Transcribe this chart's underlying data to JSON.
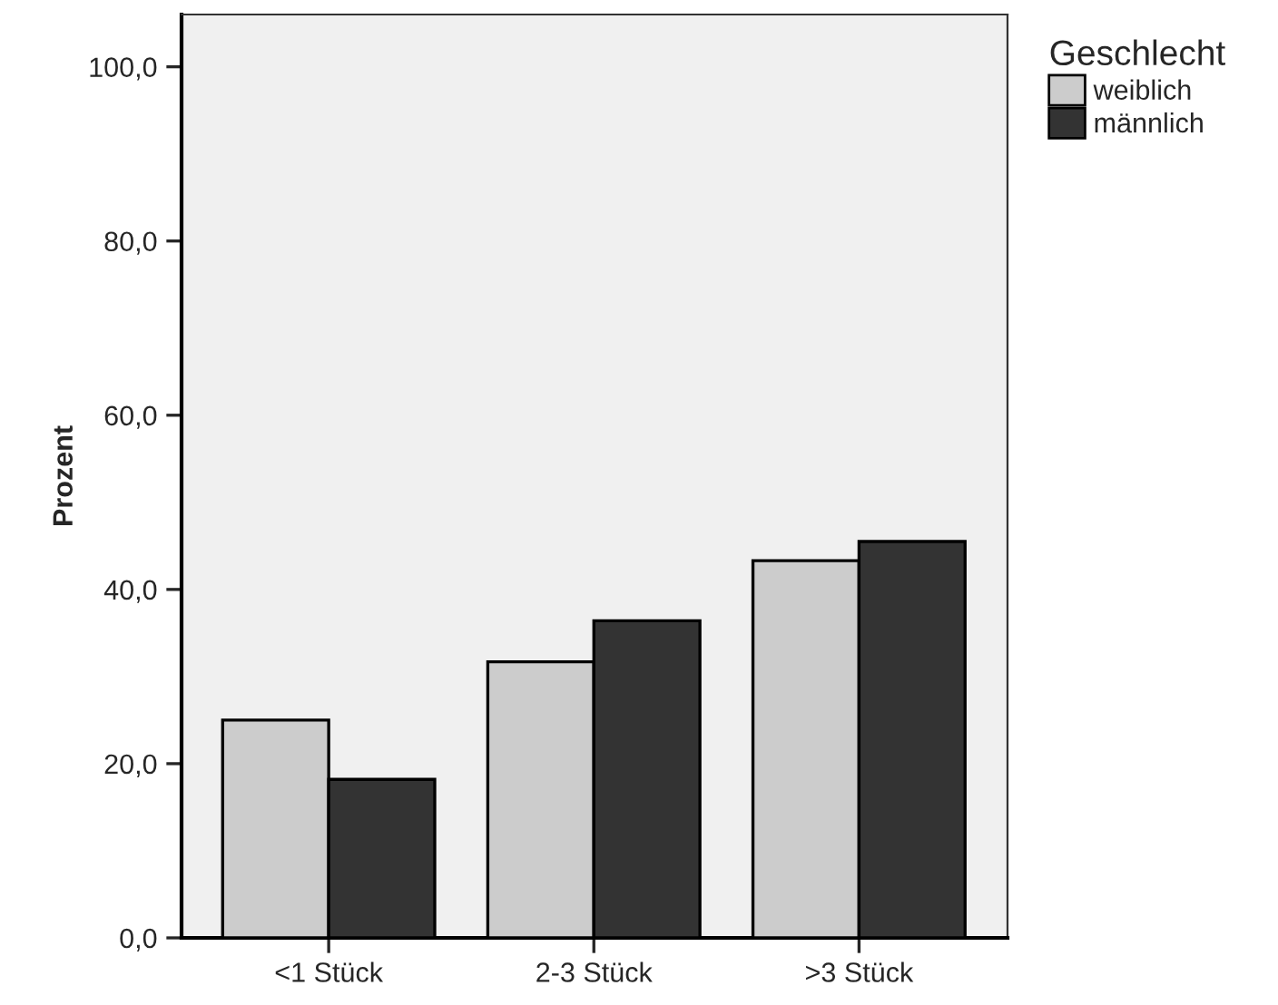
{
  "chart_data": {
    "type": "bar",
    "ylabel": "Prozent",
    "legend_title": "Geschlecht",
    "legend": "top right",
    "categories": [
      "<1 Stück",
      "2-3 Stück",
      ">3 Stück"
    ],
    "series": [
      {
        "name": "weiblich",
        "color": "#cccccc",
        "values": [
          25.0,
          31.7,
          43.3
        ]
      },
      {
        "name": "männlich",
        "color": "#333333",
        "values": [
          18.2,
          36.4,
          45.5
        ]
      }
    ],
    "ylim": [
      0,
      106
    ],
    "yticks": [
      {
        "value": 0,
        "label": "0,0"
      },
      {
        "value": 20,
        "label": "20,0"
      },
      {
        "value": 40,
        "label": "40,0"
      },
      {
        "value": 60,
        "label": "60,0"
      },
      {
        "value": 80,
        "label": "80,0"
      },
      {
        "value": 100,
        "label": "100,0"
      }
    ],
    "grid": false
  }
}
